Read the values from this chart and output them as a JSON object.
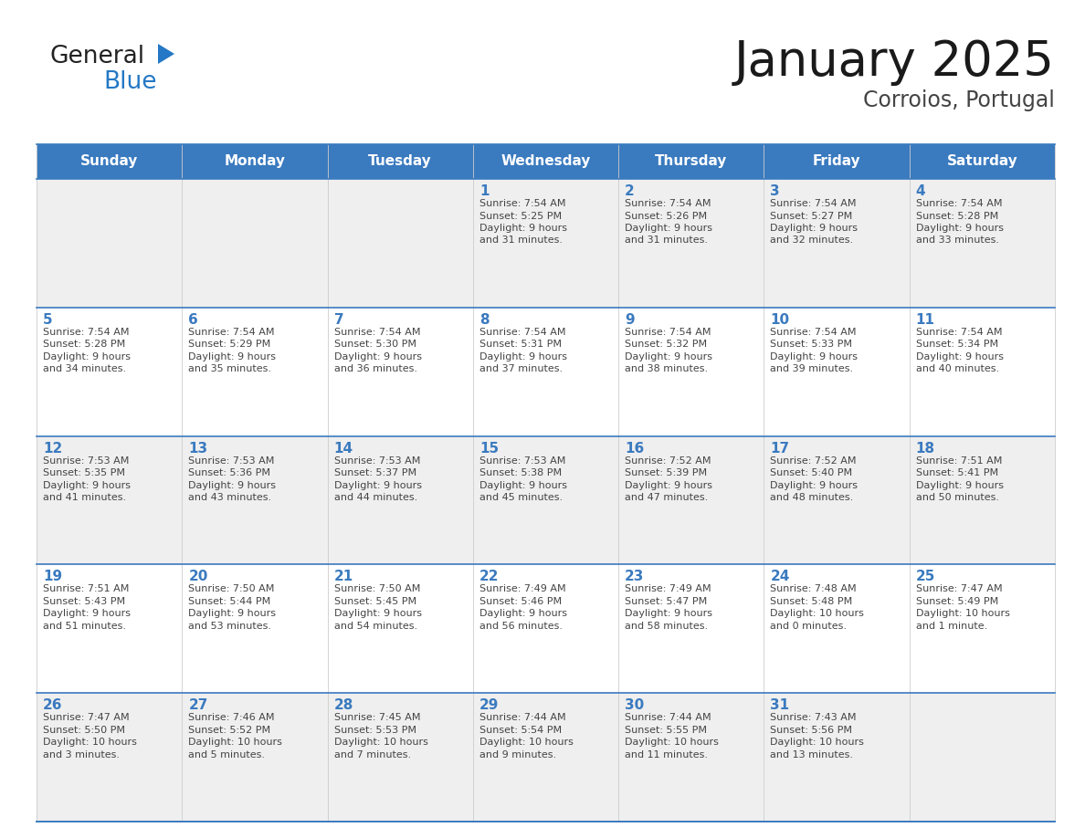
{
  "title": "January 2025",
  "subtitle": "Corroios, Portugal",
  "days_of_week": [
    "Sunday",
    "Monday",
    "Tuesday",
    "Wednesday",
    "Thursday",
    "Friday",
    "Saturday"
  ],
  "header_bg": "#3a7abf",
  "header_text_color": "#ffffff",
  "cell_bg_odd": "#efefef",
  "cell_bg_even": "#ffffff",
  "text_color": "#444444",
  "day_num_color": "#3a7abf",
  "line_color": "#3a7abf",
  "calendar_data": [
    [
      {
        "day": "",
        "sunrise": "",
        "sunset": "",
        "daylight": ""
      },
      {
        "day": "",
        "sunrise": "",
        "sunset": "",
        "daylight": ""
      },
      {
        "day": "",
        "sunrise": "",
        "sunset": "",
        "daylight": ""
      },
      {
        "day": "1",
        "sunrise": "7:54 AM",
        "sunset": "5:25 PM",
        "daylight": "9 hours\nand 31 minutes."
      },
      {
        "day": "2",
        "sunrise": "7:54 AM",
        "sunset": "5:26 PM",
        "daylight": "9 hours\nand 31 minutes."
      },
      {
        "day": "3",
        "sunrise": "7:54 AM",
        "sunset": "5:27 PM",
        "daylight": "9 hours\nand 32 minutes."
      },
      {
        "day": "4",
        "sunrise": "7:54 AM",
        "sunset": "5:28 PM",
        "daylight": "9 hours\nand 33 minutes."
      }
    ],
    [
      {
        "day": "5",
        "sunrise": "7:54 AM",
        "sunset": "5:28 PM",
        "daylight": "9 hours\nand 34 minutes."
      },
      {
        "day": "6",
        "sunrise": "7:54 AM",
        "sunset": "5:29 PM",
        "daylight": "9 hours\nand 35 minutes."
      },
      {
        "day": "7",
        "sunrise": "7:54 AM",
        "sunset": "5:30 PM",
        "daylight": "9 hours\nand 36 minutes."
      },
      {
        "day": "8",
        "sunrise": "7:54 AM",
        "sunset": "5:31 PM",
        "daylight": "9 hours\nand 37 minutes."
      },
      {
        "day": "9",
        "sunrise": "7:54 AM",
        "sunset": "5:32 PM",
        "daylight": "9 hours\nand 38 minutes."
      },
      {
        "day": "10",
        "sunrise": "7:54 AM",
        "sunset": "5:33 PM",
        "daylight": "9 hours\nand 39 minutes."
      },
      {
        "day": "11",
        "sunrise": "7:54 AM",
        "sunset": "5:34 PM",
        "daylight": "9 hours\nand 40 minutes."
      }
    ],
    [
      {
        "day": "12",
        "sunrise": "7:53 AM",
        "sunset": "5:35 PM",
        "daylight": "9 hours\nand 41 minutes."
      },
      {
        "day": "13",
        "sunrise": "7:53 AM",
        "sunset": "5:36 PM",
        "daylight": "9 hours\nand 43 minutes."
      },
      {
        "day": "14",
        "sunrise": "7:53 AM",
        "sunset": "5:37 PM",
        "daylight": "9 hours\nand 44 minutes."
      },
      {
        "day": "15",
        "sunrise": "7:53 AM",
        "sunset": "5:38 PM",
        "daylight": "9 hours\nand 45 minutes."
      },
      {
        "day": "16",
        "sunrise": "7:52 AM",
        "sunset": "5:39 PM",
        "daylight": "9 hours\nand 47 minutes."
      },
      {
        "day": "17",
        "sunrise": "7:52 AM",
        "sunset": "5:40 PM",
        "daylight": "9 hours\nand 48 minutes."
      },
      {
        "day": "18",
        "sunrise": "7:51 AM",
        "sunset": "5:41 PM",
        "daylight": "9 hours\nand 50 minutes."
      }
    ],
    [
      {
        "day": "19",
        "sunrise": "7:51 AM",
        "sunset": "5:43 PM",
        "daylight": "9 hours\nand 51 minutes."
      },
      {
        "day": "20",
        "sunrise": "7:50 AM",
        "sunset": "5:44 PM",
        "daylight": "9 hours\nand 53 minutes."
      },
      {
        "day": "21",
        "sunrise": "7:50 AM",
        "sunset": "5:45 PM",
        "daylight": "9 hours\nand 54 minutes."
      },
      {
        "day": "22",
        "sunrise": "7:49 AM",
        "sunset": "5:46 PM",
        "daylight": "9 hours\nand 56 minutes."
      },
      {
        "day": "23",
        "sunrise": "7:49 AM",
        "sunset": "5:47 PM",
        "daylight": "9 hours\nand 58 minutes."
      },
      {
        "day": "24",
        "sunrise": "7:48 AM",
        "sunset": "5:48 PM",
        "daylight": "10 hours\nand 0 minutes."
      },
      {
        "day": "25",
        "sunrise": "7:47 AM",
        "sunset": "5:49 PM",
        "daylight": "10 hours\nand 1 minute."
      }
    ],
    [
      {
        "day": "26",
        "sunrise": "7:47 AM",
        "sunset": "5:50 PM",
        "daylight": "10 hours\nand 3 minutes."
      },
      {
        "day": "27",
        "sunrise": "7:46 AM",
        "sunset": "5:52 PM",
        "daylight": "10 hours\nand 5 minutes."
      },
      {
        "day": "28",
        "sunrise": "7:45 AM",
        "sunset": "5:53 PM",
        "daylight": "10 hours\nand 7 minutes."
      },
      {
        "day": "29",
        "sunrise": "7:44 AM",
        "sunset": "5:54 PM",
        "daylight": "10 hours\nand 9 minutes."
      },
      {
        "day": "30",
        "sunrise": "7:44 AM",
        "sunset": "5:55 PM",
        "daylight": "10 hours\nand 11 minutes."
      },
      {
        "day": "31",
        "sunrise": "7:43 AM",
        "sunset": "5:56 PM",
        "daylight": "10 hours\nand 13 minutes."
      },
      {
        "day": "",
        "sunrise": "",
        "sunset": "",
        "daylight": ""
      }
    ]
  ],
  "logo_color_general": "#222222",
  "logo_color_blue": "#2478c5",
  "logo_triangle_color": "#2478c5"
}
